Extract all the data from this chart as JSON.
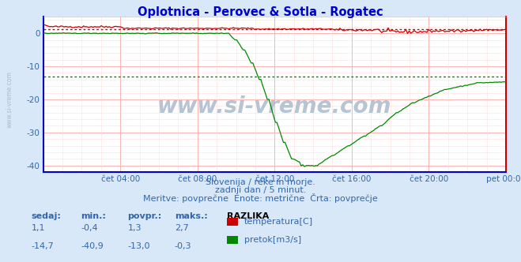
{
  "title": "Oplotnica - Perovec & Sotla - Rogatec",
  "title_color": "#0000cc",
  "bg_color": "#d8e8f8",
  "plot_bg_color": "#ffffff",
  "grid_color_major": "#ffaaaa",
  "grid_color_minor": "#ffdddd",
  "border_bottom_color": "#0000cc",
  "border_right_color": "#cc0000",
  "border_left_color": "#0000cc",
  "border_top_color": "#ffaaaa",
  "xlabel_color": "#3366aa",
  "ylabel_color": "#3366aa",
  "xtick_labels": [
    "čet 04:00",
    "čet 08:00",
    "čet 12:00",
    "čet 16:00",
    "čet 20:00",
    "pet 00:00"
  ],
  "xtick_fractions": [
    0.1667,
    0.3333,
    0.5,
    0.6667,
    0.8333,
    1.0
  ],
  "ytick_values": [
    0,
    -10,
    -20,
    -30,
    -40
  ],
  "ylim": [
    -42,
    5
  ],
  "n_points": 288,
  "temp_color": "#cc0000",
  "pretok_color": "#008800",
  "temp_avg_value": 1.3,
  "pretok_avg_value": -13.0,
  "watermark": "www.si-vreme.com",
  "watermark_color": "#aabbcc",
  "side_watermark": "www.si-vreme.com",
  "subtitle1": "Slovenija / reke in morje.",
  "subtitle2": "zadnji dan / 5 minut.",
  "subtitle3": "Meritve: povprečne  Enote: metrične  Črta: povprečje",
  "subtitle_color": "#3366aa",
  "table_headers": [
    "sedaj:",
    "min.:",
    "povpr.:",
    "maks.:"
  ],
  "table_row1": [
    "1,1",
    "-0,4",
    "1,3",
    "2,7"
  ],
  "table_row2": [
    "-14,7",
    "-40,9",
    "-13,0",
    "-0,3"
  ],
  "legend_header": "RAZLIKA",
  "legend_items": [
    {
      "label": "temperatura[C]",
      "color": "#cc0000"
    },
    {
      "label": "pretok[m3/s]",
      "color": "#008800"
    }
  ]
}
